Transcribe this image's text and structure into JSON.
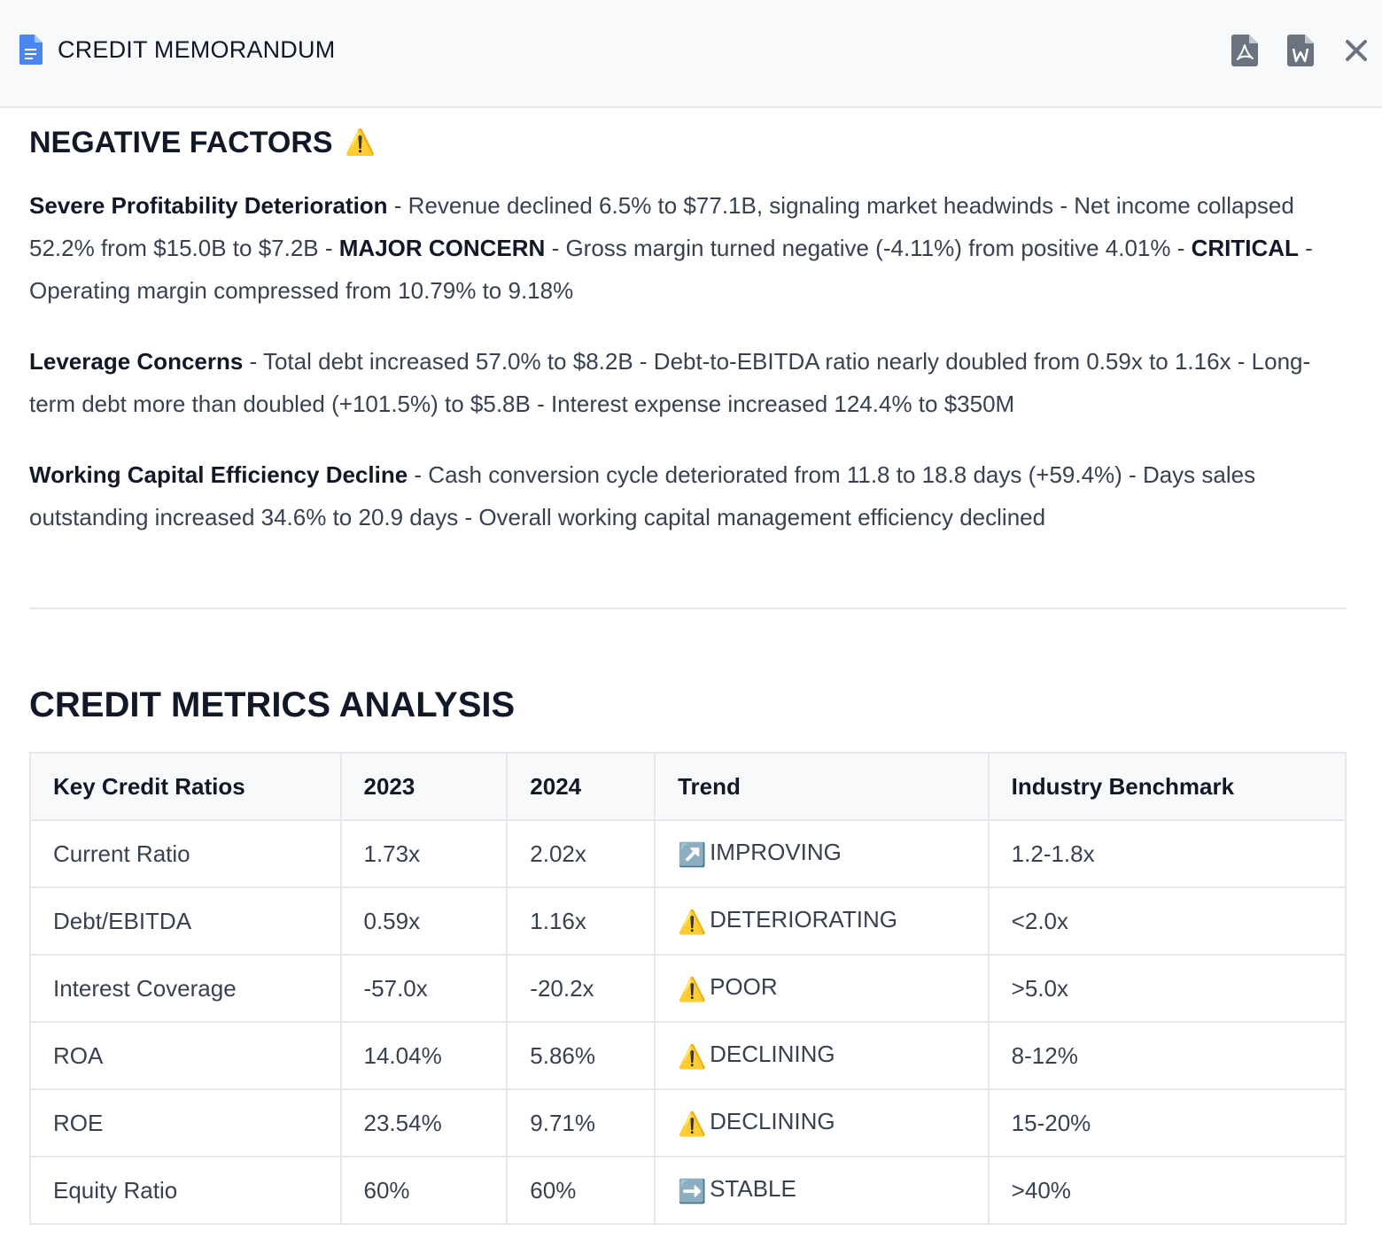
{
  "header": {
    "title": "CREDIT MEMORANDUM"
  },
  "negative_factors": {
    "heading": "NEGATIVE FACTORS",
    "heading_icon": "⚠️",
    "paragraphs": [
      {
        "lead": "Severe Profitability Deterioration",
        "t1": " - Revenue declined 6.5% to $77.1B, signaling market headwinds - Net income collapsed 52.2% from $15.0B to $7.2B - ",
        "b1": "MAJOR CONCERN",
        "t2": " - Gross margin turned negative (-4.11%) from positive 4.01% - ",
        "b2": "CRITICAL",
        "t3": " - Operating margin compressed from 10.79% to 9.18%"
      },
      {
        "lead": "Leverage Concerns",
        "t1": " - Total debt increased 57.0% to $8.2B - Debt-to-EBITDA ratio nearly doubled from 0.59x to 1.16x - Long-term debt more than doubled (+101.5%) to $5.8B - Interest expense increased 124.4% to $350M"
      },
      {
        "lead": "Working Capital Efficiency Decline",
        "t1": " - Cash conversion cycle deteriorated from 11.8 to 18.8 days (+59.4%) - Days sales outstanding increased 34.6% to 20.9 days - Overall working capital management efficiency declined"
      }
    ]
  },
  "credit_metrics": {
    "heading": "CREDIT METRICS ANALYSIS",
    "columns": [
      "Key Credit Ratios",
      "2023",
      "2024",
      "Trend",
      "Industry Benchmark"
    ],
    "rows": [
      {
        "ratio": "Current Ratio",
        "y2023": "1.73x",
        "y2024": "2.02x",
        "trend_icon": "↗️",
        "trend": "IMPROVING",
        "benchmark": "1.2-1.8x"
      },
      {
        "ratio": "Debt/EBITDA",
        "y2023": "0.59x",
        "y2024": "1.16x",
        "trend_icon": "⚠️",
        "trend": "DETERIORATING",
        "benchmark": "<2.0x"
      },
      {
        "ratio": "Interest Coverage",
        "y2023": "-57.0x",
        "y2024": "-20.2x",
        "trend_icon": "⚠️",
        "trend": "POOR",
        "benchmark": ">5.0x"
      },
      {
        "ratio": "ROA",
        "y2023": "14.04%",
        "y2024": "5.86%",
        "trend_icon": "⚠️",
        "trend": "DECLINING",
        "benchmark": "8-12%"
      },
      {
        "ratio": "ROE",
        "y2023": "23.54%",
        "y2024": "9.71%",
        "trend_icon": "⚠️",
        "trend": "DECLINING",
        "benchmark": "15-20%"
      },
      {
        "ratio": "Equity Ratio",
        "y2023": "60%",
        "y2024": "60%",
        "trend_icon": "➡️",
        "trend": "STABLE",
        "benchmark": ">40%"
      }
    ]
  }
}
